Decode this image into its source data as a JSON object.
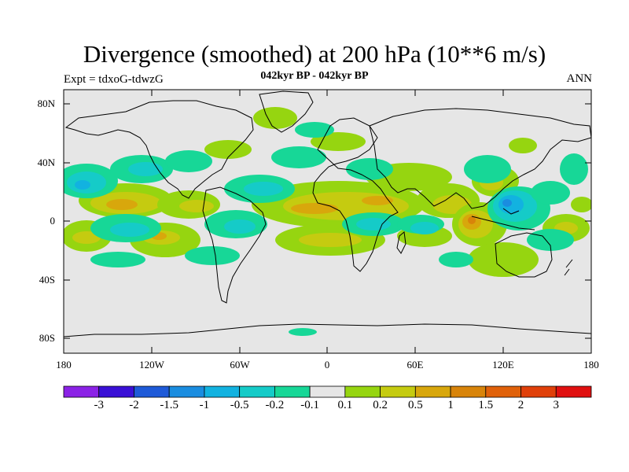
{
  "title": "Divergence (smoothed) at 200 hPa (10**6 m/s)",
  "subtitle": "042kyr BP - 042kyr BP",
  "experiment": "Expt = tdxoG-tdwzG",
  "season": "ANN",
  "map": {
    "lat_ticks": [
      "80N",
      "40N",
      "0",
      "40S",
      "80S"
    ],
    "lon_ticks": [
      "180",
      "120W",
      "60W",
      "0",
      "60E",
      "120E",
      "180"
    ],
    "ocean_color": "#e6e6e6",
    "coast_color": "#000000"
  },
  "colorbar": {
    "colors": [
      "#8b22e6",
      "#3a10d6",
      "#1e5ad8",
      "#1a8de0",
      "#12b2e0",
      "#15cbc8",
      "#17d797",
      "#e6e6e6",
      "#96d510",
      "#c5cb10",
      "#d8a70c",
      "#d8840a",
      "#e0610a",
      "#e0400a",
      "#e01010"
    ],
    "labels": [
      "-3",
      "-2",
      "-1.5",
      "-1",
      "-0.5",
      "-0.2",
      "-0.1",
      "0.1",
      "0.2",
      "0.5",
      "1",
      "1.5",
      "2",
      "3"
    ]
  }
}
